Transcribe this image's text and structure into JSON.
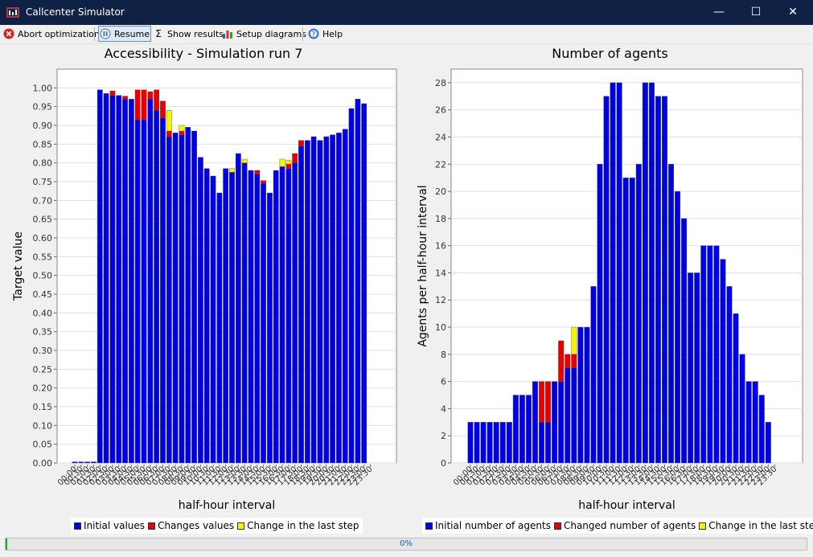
{
  "window": {
    "title": "Callcenter Simulator",
    "minimize_glyph": "—",
    "maximize_glyph": "☐",
    "close_glyph": "✕"
  },
  "toolbar": {
    "abort_label": "Abort optimization",
    "resume_label": "Resume",
    "show_results_label": "Show results",
    "setup_diagrams_label": "Setup diagrams",
    "help_label": "Help"
  },
  "colors": {
    "blue": "#0000e6",
    "red": "#e60000",
    "yellow": "#f5f500",
    "grid": "#d8d8d8"
  },
  "chart_data": [
    {
      "type": "bar",
      "stacked": true,
      "title": "Accessibility - Simulation run 7",
      "xlabel": "half-hour interval",
      "ylabel": "Target value",
      "ylim": [
        0,
        1.05
      ],
      "y_ticks": [
        0.0,
        0.05,
        0.1,
        0.15,
        0.2,
        0.25,
        0.3,
        0.35,
        0.4,
        0.45,
        0.5,
        0.55,
        0.6,
        0.65,
        0.7,
        0.75,
        0.8,
        0.85,
        0.9,
        0.95,
        1.0
      ],
      "y_decimals": 2,
      "categories": [
        "00:00",
        "00:30",
        "01:00",
        "01:30",
        "02:00",
        "02:30",
        "03:00",
        "03:30",
        "04:00",
        "04:30",
        "05:00",
        "05:30",
        "06:00",
        "06:30",
        "07:00",
        "07:30",
        "08:00",
        "08:30",
        "09:00",
        "09:30",
        "10:00",
        "10:30",
        "11:00",
        "11:30",
        "12:00",
        "12:30",
        "13:00",
        "13:30",
        "14:00",
        "14:30",
        "15:00",
        "15:30",
        "16:00",
        "16:30",
        "17:00",
        "17:30",
        "18:00",
        "18:30",
        "19:00",
        "19:30",
        "20:00",
        "20:30",
        "21:00",
        "21:30",
        "22:00",
        "22:30",
        "23:00",
        "23:30"
      ],
      "series": [
        {
          "name": "Initial values",
          "color": "#0000e6",
          "values": [
            0.003,
            0.003,
            0.003,
            0.003,
            0.995,
            0.985,
            0.98,
            0.98,
            0.97,
            0.97,
            0.915,
            0.915,
            0.97,
            0.94,
            0.92,
            0.87,
            0.88,
            0.875,
            0.895,
            0.885,
            0.815,
            0.785,
            0.765,
            0.72,
            0.785,
            0.775,
            0.825,
            0.8,
            0.78,
            0.77,
            0.745,
            0.72,
            0.78,
            0.79,
            0.785,
            0.8,
            0.845,
            0.86,
            0.87,
            0.86,
            0.87,
            0.875,
            0.88,
            0.89,
            0.945,
            0.97,
            0.958,
            0
          ]
        },
        {
          "name": "Changes values",
          "color": "#e60000",
          "values": [
            0,
            0,
            0,
            0,
            0,
            0,
            0.012,
            0,
            0.008,
            0,
            0.08,
            0.08,
            0.02,
            0.055,
            0.045,
            0.015,
            0,
            0.01,
            0,
            0,
            0,
            0,
            0,
            0,
            0,
            0,
            0,
            0,
            0,
            0.01,
            0.008,
            0,
            0,
            0,
            0.012,
            0.025,
            0.015,
            0,
            0,
            0,
            0,
            0,
            0,
            0,
            0,
            0,
            0,
            0
          ]
        },
        {
          "name": "Change in the last step",
          "color": "#f5f500",
          "values": [
            0,
            0,
            0,
            0,
            0,
            0,
            0,
            0,
            0,
            0,
            0,
            0,
            0,
            0,
            0,
            0.055,
            0,
            0.015,
            0,
            0,
            0,
            0,
            0,
            0,
            0,
            0.01,
            0,
            0.01,
            0,
            0,
            0,
            0,
            0,
            0.02,
            0.01,
            0,
            0,
            0,
            0,
            0,
            0,
            0,
            0,
            0,
            0,
            0,
            0,
            0
          ]
        }
      ]
    },
    {
      "type": "bar",
      "stacked": true,
      "title": "Number of agents",
      "xlabel": "half-hour interval",
      "ylabel": "Agents per half-hour interval",
      "ylim": [
        0,
        29
      ],
      "y_ticks": [
        0,
        2,
        4,
        6,
        8,
        10,
        12,
        14,
        16,
        18,
        20,
        22,
        24,
        26,
        28
      ],
      "y_decimals": 0,
      "categories": [
        "00:00",
        "00:30",
        "01:00",
        "01:30",
        "02:00",
        "02:30",
        "03:00",
        "03:30",
        "04:00",
        "04:30",
        "05:00",
        "05:30",
        "06:00",
        "06:30",
        "07:00",
        "07:30",
        "08:00",
        "08:30",
        "09:00",
        "09:30",
        "10:00",
        "10:30",
        "11:00",
        "11:30",
        "12:00",
        "12:30",
        "13:00",
        "13:30",
        "14:00",
        "14:30",
        "15:00",
        "15:30",
        "16:00",
        "16:30",
        "17:00",
        "17:30",
        "18:00",
        "18:30",
        "19:00",
        "19:30",
        "20:00",
        "20:30",
        "21:00",
        "21:30",
        "22:00",
        "22:30",
        "23:00",
        "23:30"
      ],
      "series": [
        {
          "name": "Initial number of agents",
          "color": "#0000e6",
          "values": [
            3,
            3,
            3,
            3,
            3,
            3,
            3,
            5,
            5,
            5,
            6,
            3,
            3,
            6,
            6,
            7,
            7,
            10,
            10,
            13,
            22,
            27,
            28,
            28,
            21,
            21,
            22,
            28,
            28,
            27,
            27,
            22,
            20,
            18,
            14,
            14,
            16,
            16,
            16,
            15,
            13,
            11,
            8,
            6,
            6,
            5,
            3,
            0
          ]
        },
        {
          "name": "Changed number of agents",
          "color": "#e60000",
          "values": [
            0,
            0,
            0,
            0,
            0,
            0,
            0,
            0,
            0,
            0,
            0,
            3,
            3,
            0,
            3,
            1,
            1,
            0,
            0,
            0,
            0,
            0,
            0,
            0,
            0,
            0,
            0,
            0,
            0,
            0,
            0,
            0,
            0,
            0,
            0,
            0,
            0,
            0,
            0,
            0,
            0,
            0,
            0,
            0,
            0,
            0,
            0,
            0
          ]
        },
        {
          "name": "Change in the last step",
          "color": "#f5f500",
          "values": [
            0,
            0,
            0,
            0,
            0,
            0,
            0,
            0,
            0,
            0,
            0,
            0,
            0,
            0,
            0,
            0,
            2,
            0,
            0,
            0,
            0,
            0,
            0,
            0,
            0,
            0,
            0,
            0,
            0,
            0,
            0,
            0,
            0,
            0,
            0,
            0,
            0,
            0,
            0,
            0,
            0,
            0,
            0,
            0,
            0,
            0,
            0,
            0
          ]
        }
      ]
    }
  ],
  "progress": {
    "value": 0,
    "label": "0%"
  }
}
